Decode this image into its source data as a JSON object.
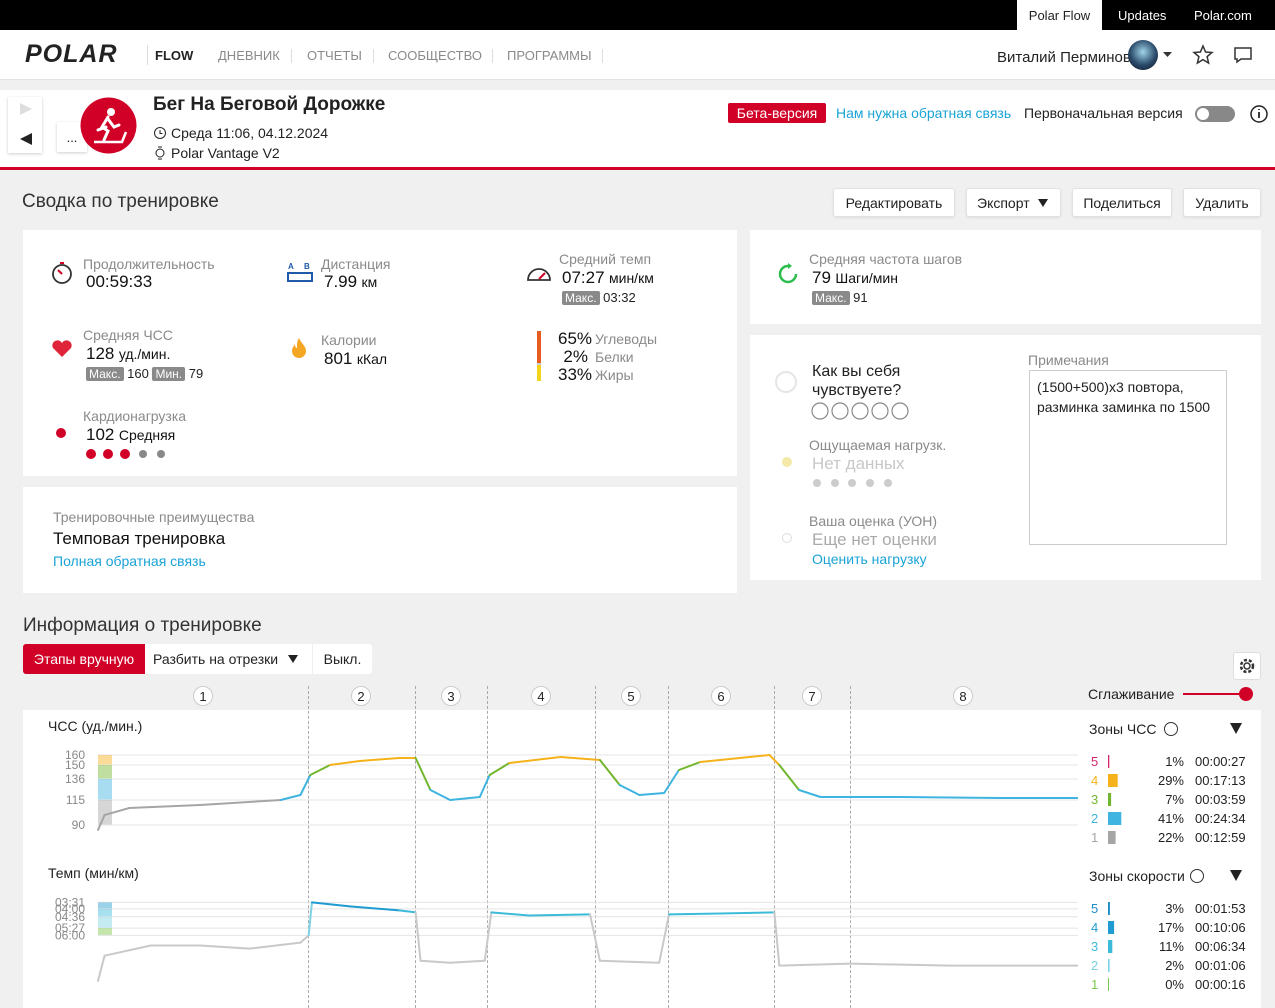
{
  "topbar": {
    "links": [
      "Polar Flow",
      "Updates",
      "Polar.com"
    ]
  },
  "nav": {
    "logo": "POLAR",
    "product": "FLOW",
    "items": [
      "ДНЕВНИК",
      "ОТЧЕТЫ",
      "СООБЩЕСТВО",
      "ПРОГРАММЫ"
    ],
    "user": "Виталий Перминов"
  },
  "header": {
    "more": "...",
    "title": "Бег На Беговой Дорожке",
    "date": "Среда 11:06, 04.12.2024",
    "device": "Polar Vantage V2",
    "beta": "Бета-версия",
    "feedback": "Нам нужна обратная связь",
    "original": "Первоначальная версия"
  },
  "summary": {
    "title": "Сводка по тренировке",
    "buttons": [
      "Редактировать",
      "Экспорт",
      "Поделиться",
      "Удалить"
    ]
  },
  "stats": {
    "duration": {
      "label": "Продолжительность",
      "value": "00:59:33"
    },
    "distance": {
      "label": "Дистанция",
      "value": "7.99",
      "unit": "км"
    },
    "pace": {
      "label": "Средний темп",
      "value": "07:27",
      "unit": "мин/км",
      "max_label": "Макс.",
      "max": "03:32"
    },
    "hr": {
      "label": "Средняя ЧСС",
      "value": "128",
      "unit": "уд./мин.",
      "max_label": "Макс.",
      "max": "160",
      "min_label": "Мин.",
      "min": "79"
    },
    "calories": {
      "label": "Калории",
      "value": "801",
      "unit": "кКал"
    },
    "macros": [
      {
        "value": "65%",
        "label": "Углеводы"
      },
      {
        "value": "2%",
        "label": "Белки"
      },
      {
        "value": "33%",
        "label": "Жиры"
      }
    ],
    "cardio": {
      "label": "Кардионагрузка",
      "value": "102",
      "unit": "Средняя"
    },
    "cadence": {
      "label": "Средняя частота шагов",
      "value": "79",
      "unit": "Шаги/мин",
      "max_label": "Макс.",
      "max": "91"
    }
  },
  "benefit": {
    "label": "Тренировочные преимущества",
    "value": "Темповая тренировка",
    "link": "Полная обратная связь"
  },
  "feeling": {
    "question": "Как вы себя чувствуете?",
    "perceived_label": "Ощущаемая нагрузк.",
    "perceived_value": "Нет данных",
    "rpe_label": "Ваша оценка (УОН)",
    "rpe_value": "Еще нет оценки",
    "rpe_link": "Оценить нагрузку",
    "notes_label": "Примечания",
    "notes": "(1500+500)x3 повтора, разминка заминка по 1500"
  },
  "info": {
    "title": "Информация о тренировке",
    "tabs": [
      "Этапы вручную",
      "Разбить на отрезки",
      "Выкл."
    ],
    "smoothing": "Сглаживание",
    "laps": [
      "1",
      "2",
      "3",
      "4",
      "5",
      "6",
      "7",
      "8"
    ]
  },
  "hr_chart": {
    "type": "line",
    "title": "ЧСС (уд./мин.)",
    "xlim": [
      0,
      59.55
    ],
    "x": [
      0,
      0.4,
      1.9,
      6.2,
      11.1,
      12.3,
      12.9,
      14.1,
      15.9,
      18.3,
      19.3,
      20.2,
      21.4,
      23.2,
      23.8,
      25.0,
      28.1,
      30.5,
      31.7,
      32.9,
      34.4,
      35.3,
      36.6,
      40.8,
      41.4,
      42.6,
      43.9,
      48.7,
      54.8,
      59.5
    ],
    "values": [
      85,
      100,
      107,
      110,
      115,
      120,
      140,
      150,
      154,
      157,
      157,
      125,
      115,
      118,
      140,
      152,
      158,
      155,
      130,
      120,
      122,
      145,
      153,
      160,
      150,
      125,
      118,
      118,
      117,
      117
    ],
    "ylim": [
      85,
      165
    ],
    "yticks": [
      160,
      150,
      136,
      115,
      90
    ],
    "grid": true,
    "zones": {
      "title": "Зоны ЧСС",
      "names": [
        "5",
        "4",
        "3",
        "2",
        "1"
      ],
      "values": [
        1,
        29,
        7,
        41,
        22
      ],
      "value_labels": [
        "1%",
        "29%",
        "7%",
        "41%",
        "22%"
      ],
      "times": [
        "00:00:27",
        "00:17:13",
        "00:03:59",
        "00:24:34",
        "00:12:59"
      ],
      "colors": [
        "#d6246e",
        "#f5b21a",
        "#72b62d",
        "#3fb4e0",
        "#a5a5a5"
      ]
    }
  },
  "pace_chart": {
    "type": "line",
    "title": "Темп (мин/км)",
    "xlim": [
      0,
      59.55
    ],
    "y_inverted": true,
    "line_color": "#c9c9c9",
    "x": [
      0,
      0.4,
      3.2,
      6.2,
      9.2,
      12.3,
      12.8,
      13.0,
      15.3,
      18.3,
      19.3,
      19.6,
      21.4,
      23.5,
      23.9,
      26.2,
      29.9,
      30.5,
      34.1,
      34.7,
      37.8,
      41.1,
      41.4,
      45.7,
      51.8,
      59.5
    ],
    "values": [
      566,
      452,
      406,
      406,
      420,
      393,
      360,
      211,
      229,
      247,
      256,
      475,
      484,
      475,
      256,
      270,
      265,
      475,
      484,
      265,
      261,
      256,
      497,
      488,
      497,
      497
    ],
    "ylim": [
      200,
      580
    ],
    "yticks": [
      {
        "value": 211,
        "label": "03:31"
      },
      {
        "value": 240,
        "label": "04:00"
      },
      {
        "value": 276,
        "label": "04:36"
      },
      {
        "value": 327,
        "label": "05:27"
      },
      {
        "value": 360,
        "label": "06:00"
      }
    ],
    "grid": true,
    "zones": {
      "title": "Зоны скорости",
      "names": [
        "5",
        "4",
        "3",
        "2",
        "1"
      ],
      "values": [
        3,
        17,
        11,
        2,
        0
      ],
      "value_labels": [
        "3%",
        "17%",
        "11%",
        "2%",
        "0%"
      ],
      "times": [
        "00:01:53",
        "00:10:06",
        "00:06:34",
        "00:01:06",
        "00:00:16"
      ],
      "colors": [
        "#1c8dc9",
        "#1f9bd1",
        "#3cbbd9",
        "#7dd3e3",
        "#7cc84a"
      ]
    }
  }
}
